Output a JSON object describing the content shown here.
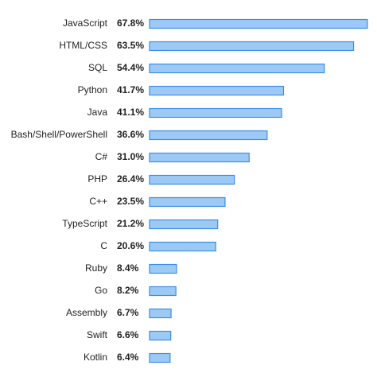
{
  "chart_data": {
    "type": "bar",
    "orientation": "horizontal",
    "categories": [
      "JavaScript",
      "HTML/CSS",
      "SQL",
      "Python",
      "Java",
      "Bash/Shell/PowerShell",
      "C#",
      "PHP",
      "C++",
      "TypeScript",
      "C",
      "Ruby",
      "Go",
      "Assembly",
      "Swift",
      "Kotlin"
    ],
    "values": [
      67.8,
      63.5,
      54.4,
      41.7,
      41.1,
      36.6,
      31.0,
      26.4,
      23.5,
      21.2,
      20.6,
      8.4,
      8.2,
      6.7,
      6.6,
      6.4
    ],
    "value_labels": [
      "67.8%",
      "63.5%",
      "54.4%",
      "41.7%",
      "41.1%",
      "36.6%",
      "31.0%",
      "26.4%",
      "23.5%",
      "21.2%",
      "20.6%",
      "8.4%",
      "8.2%",
      "6.7%",
      "6.6%",
      "6.4%"
    ],
    "color": "#9dcaf5",
    "edge_color": "#3a8ee6"
  }
}
